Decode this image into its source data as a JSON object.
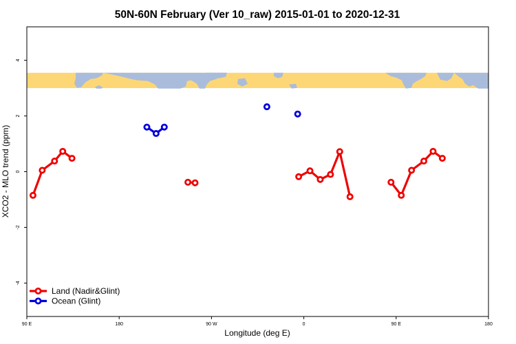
{
  "chart_data": {
    "type": "line",
    "title": "50N-60N February (Ver 10_raw)   2015-01-01 to 2020-12-31",
    "xlabel": "Longitude (deg E)",
    "ylabel": "XCO2 - MLO trend (ppm)",
    "xlim": [
      90,
      540
    ],
    "ylim": [
      -5.2,
      5.2
    ],
    "x_ticks": [
      {
        "value": 90,
        "label": "90 E"
      },
      {
        "value": 180,
        "label": "180"
      },
      {
        "value": 270,
        "label": "90 W"
      },
      {
        "value": 360,
        "label": "0"
      },
      {
        "value": 450,
        "label": "90 E"
      },
      {
        "value": 540,
        "label": "180"
      }
    ],
    "y_ticks": [
      {
        "value": -4,
        "label": "-4"
      },
      {
        "value": -2,
        "label": "-2"
      },
      {
        "value": 0,
        "label": "0"
      },
      {
        "value": 2,
        "label": "2"
      },
      {
        "value": 4,
        "label": "4"
      }
    ],
    "map_band": {
      "ymin": 3.0,
      "ymax": 3.55,
      "ocean_color": "#a9bcdb",
      "land_color": "#fdd775"
    },
    "series": [
      {
        "name": "Land (Nadir&Glint)",
        "color": "#ee0000",
        "segments": [
          [
            [
              96,
              -0.85
            ],
            [
              105,
              0.05
            ],
            [
              117,
              0.38
            ],
            [
              125,
              0.73
            ],
            [
              134,
              0.48
            ]
          ],
          [
            [
              247,
              -0.38
            ],
            [
              254,
              -0.4
            ]
          ],
          [
            [
              355,
              -0.18
            ],
            [
              366,
              0.03
            ],
            [
              376,
              -0.28
            ],
            [
              386,
              -0.1
            ],
            [
              395,
              0.72
            ],
            [
              405,
              -0.9
            ]
          ],
          [
            [
              445,
              -0.38
            ],
            [
              455,
              -0.85
            ],
            [
              465,
              0.05
            ],
            [
              477,
              0.38
            ],
            [
              486,
              0.73
            ],
            [
              495,
              0.48
            ]
          ]
        ]
      },
      {
        "name": "Ocean (Glint)",
        "color": "#0000dd",
        "segments": [
          [
            [
              207,
              1.6
            ],
            [
              216,
              1.37
            ],
            [
              224,
              1.6
            ]
          ],
          [
            [
              324,
              2.33
            ]
          ],
          [
            [
              354,
              2.07
            ]
          ]
        ]
      }
    ],
    "legend": {
      "position": "bottom-left"
    },
    "grid": false
  }
}
